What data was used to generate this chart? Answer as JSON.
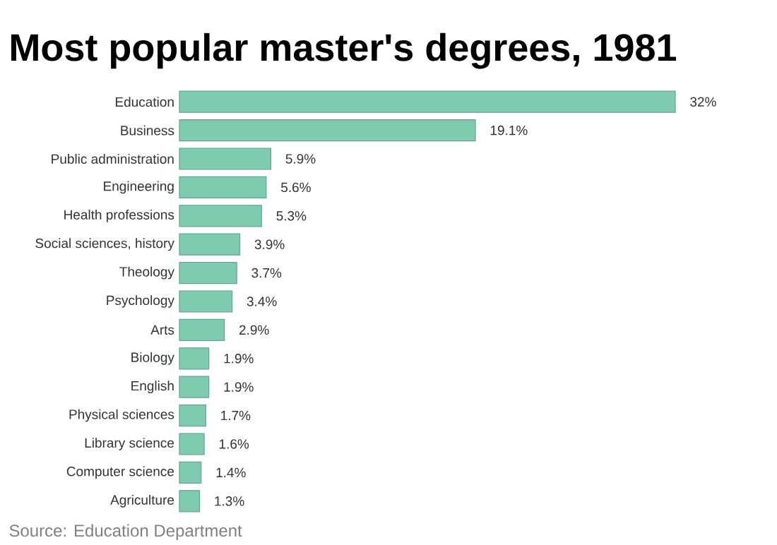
{
  "chart_data": {
    "type": "bar",
    "orientation": "horizontal",
    "title": "Most popular master's degrees, 1981",
    "categories": [
      "Education",
      "Business",
      "Public administration",
      "Engineering",
      "Health professions",
      "Social sciences, history",
      "Theology",
      "Psychology",
      "Arts",
      "Biology",
      "English",
      "Physical sciences",
      "Library science",
      "Computer science",
      "Agriculture"
    ],
    "values": [
      32,
      19.1,
      5.9,
      5.6,
      5.3,
      3.9,
      3.7,
      3.4,
      2.9,
      1.9,
      1.9,
      1.7,
      1.6,
      1.4,
      1.3
    ],
    "value_labels": [
      "32%",
      "19.1%",
      "5.9%",
      "5.6%",
      "5.3%",
      "3.9%",
      "3.7%",
      "3.4%",
      "2.9%",
      "1.9%",
      "1.9%",
      "1.7%",
      "1.6%",
      "1.4%",
      "1.3%"
    ],
    "color": "#7fcbb0",
    "annotations": [
      "Source: Education Department"
    ]
  }
}
